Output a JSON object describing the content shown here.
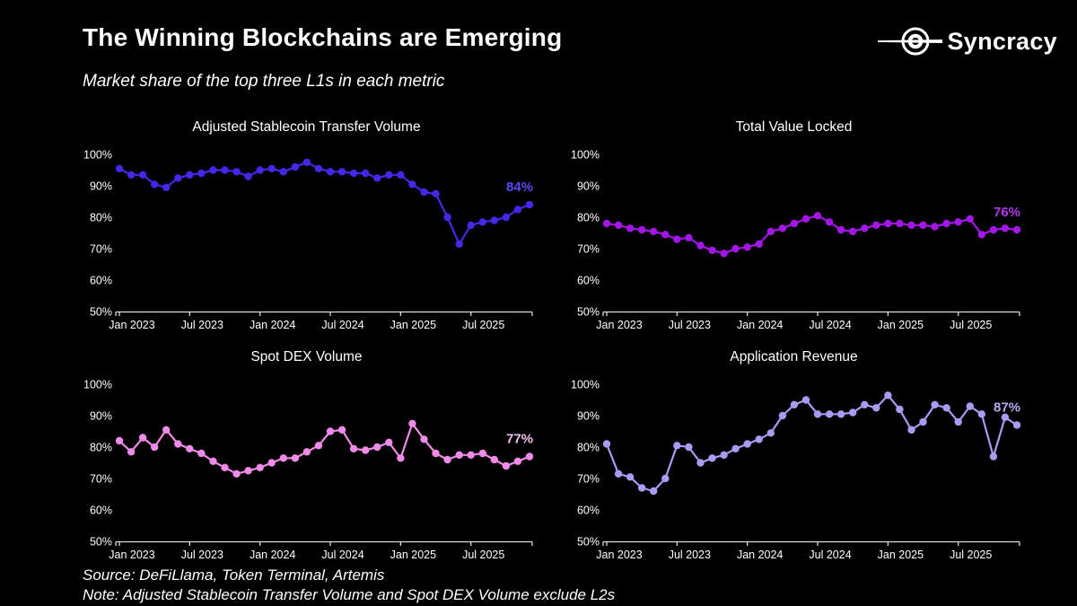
{
  "header": {
    "title": "The Winning Blockchains are Emerging",
    "subtitle": "Market share of the top three L1s in each metric",
    "brand": "Syncracy"
  },
  "footer": {
    "source": "Source: DeFiLlama, Token Terminal, Artemis",
    "note": "Note: Adjusted Stablecoin Transfer Volume and Spot DEX Volume exclude L2s"
  },
  "colors": {
    "background": "#000000",
    "text": "#ffffff",
    "axis": "#d9d9d9"
  },
  "months": [
    "Jan 2023",
    "Feb 2023",
    "Mar 2023",
    "Apr 2023",
    "May 2023",
    "Jun 2023",
    "Jul 2023",
    "Aug 2023",
    "Sep 2023",
    "Oct 2023",
    "Nov 2023",
    "Dec 2023",
    "Jan 2024",
    "Feb 2024",
    "Mar 2024",
    "Apr 2024",
    "May 2024",
    "Jun 2024",
    "Jul 2024",
    "Aug 2024",
    "Sep 2024",
    "Oct 2024",
    "Nov 2024",
    "Dec 2024",
    "Jan 2025",
    "Feb 2025",
    "Mar 2025",
    "Apr 2025",
    "May 2025",
    "Jun 2025",
    "Jul 2025",
    "Aug 2025",
    "Sep 2025",
    "Oct 2025",
    "Nov 2025",
    "Dec 2025"
  ],
  "axis": {
    "y_tick_labels": [
      "100%",
      "90%",
      "80%",
      "70%",
      "60%",
      "50%"
    ],
    "y_tick_values": [
      100,
      90,
      80,
      70,
      60,
      50
    ],
    "x_tick_labels": [
      "Jan 2023",
      "Jul 2023",
      "Jan 2024",
      "Jul 2024",
      "Jan 2025",
      "Jul 2025"
    ],
    "x_tick_month_indices": [
      0,
      6,
      12,
      18,
      24,
      30
    ]
  },
  "chart_data": [
    {
      "type": "line",
      "title": "Adjusted Stablecoin Transfer Volume",
      "line_color": "#4328e8",
      "label_color": "#5a4af2",
      "end_label": "84%",
      "ylim": [
        50,
        100
      ],
      "x_freq": "monthly, Jan 2023 - Dec 2025",
      "values": [
        95.5,
        93.5,
        93.5,
        90.5,
        89.5,
        92.5,
        93.5,
        94,
        95,
        95,
        94.5,
        93,
        95,
        95.5,
        94.5,
        96,
        97.5,
        95.5,
        94.5,
        94.5,
        94,
        94,
        92.5,
        93.5,
        93.5,
        90.5,
        88,
        87.5,
        80,
        71.5,
        77.5,
        78.5,
        79,
        80,
        82.5,
        84
      ]
    },
    {
      "type": "line",
      "title": "Total Value Locked",
      "line_color": "#a316e6",
      "label_color": "#b438f0",
      "end_label": "76%",
      "ylim": [
        50,
        100
      ],
      "x_freq": "monthly, Jan 2023 - Dec 2025",
      "values": [
        78,
        77.5,
        76.5,
        76,
        75.5,
        74.5,
        73,
        73.5,
        71,
        69.5,
        68.5,
        70,
        70.5,
        71.5,
        75.5,
        76.5,
        78,
        79.5,
        80.5,
        78.5,
        76,
        75.5,
        76.5,
        77.5,
        78,
        78,
        77.5,
        77.5,
        77,
        78,
        78.5,
        79.5,
        74.5,
        76,
        76.5,
        76
      ]
    },
    {
      "type": "line",
      "title": "Spot DEX Volume",
      "line_color": "#f08ae8",
      "label_color": "#f6c0f0",
      "end_label": "77%",
      "ylim": [
        50,
        100
      ],
      "x_freq": "monthly, Jan 2023 - Dec 2025",
      "values": [
        82,
        78.5,
        83,
        80,
        85.5,
        81,
        79.5,
        78,
        75.5,
        73.5,
        71.5,
        72.5,
        73.5,
        75,
        76.5,
        76.5,
        78.5,
        80.5,
        85,
        85.5,
        79.5,
        79,
        80,
        81.5,
        76.5,
        87.5,
        82.5,
        78,
        76,
        77.5,
        77.5,
        78,
        76,
        74,
        75.5,
        77
      ]
    },
    {
      "type": "line",
      "title": "Application Revenue",
      "line_color": "#a69df2",
      "label_color": "#b4acf6",
      "end_label": "87%",
      "ylim": [
        50,
        100
      ],
      "x_freq": "monthly, Jan 2023 - Dec 2025",
      "values": [
        81,
        71.5,
        70.5,
        67,
        66,
        70,
        80.5,
        80,
        75,
        76.5,
        77.5,
        79.5,
        81,
        82.5,
        84.5,
        90,
        93.5,
        95,
        90.5,
        90.5,
        90.5,
        91,
        93.5,
        92.5,
        96.5,
        92,
        85.5,
        88,
        93.5,
        92.5,
        88,
        93,
        90.5,
        77,
        89.5,
        87
      ]
    }
  ]
}
